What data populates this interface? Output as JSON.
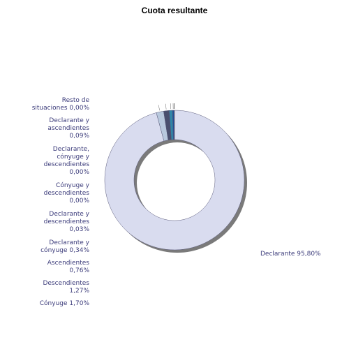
{
  "chart_data": {
    "type": "pie",
    "title": "Cuota resultante",
    "slices": [
      {
        "label": "Declarante 95,80%",
        "lines": [
          "Declarante 95,80%"
        ],
        "value": 95.8,
        "color": "#d9dcef"
      },
      {
        "label": "Cónyuge 1,70%",
        "lines": [
          "Cónyuge 1,70%"
        ],
        "value": 1.7,
        "color": "#b8c8dd"
      },
      {
        "label": "Descendientes 1,27%",
        "lines": [
          "Descendientes",
          "1,27%"
        ],
        "value": 1.27,
        "color": "#4a4f6e"
      },
      {
        "label": "Ascendientes 0,76%",
        "lines": [
          "Ascendientes",
          "0,76%"
        ],
        "value": 0.76,
        "color": "#2f86a8"
      },
      {
        "label": "Declarante y cónyuge 0,34%",
        "lines": [
          "Declarante y",
          "cónyuge 0,34%"
        ],
        "value": 0.34,
        "color": "#1f4e96"
      },
      {
        "label": "Declarante y descendientes 0,03%",
        "lines": [
          "Declarante y",
          "descendientes",
          "0,03%"
        ],
        "value": 0.03,
        "color": "#888888"
      },
      {
        "label": "Cónyuge y descendientes 0,00%",
        "lines": [
          "Cónyuge y",
          "descendientes",
          "0,00%"
        ],
        "value": 0.0,
        "color": "#777777"
      },
      {
        "label": "Declarante, cónyuge y descendientes 0,00%",
        "lines": [
          "Declarante,",
          "cónyuge y",
          "descendientes",
          "0,00%"
        ],
        "value": 0.0,
        "color": "#666666"
      },
      {
        "label": "Declarante y ascendientes 0,09%",
        "lines": [
          "Declarante y",
          "ascendientes",
          "0,09%"
        ],
        "value": 0.09,
        "color": "#999999"
      },
      {
        "label": "Resto de situaciones 0,00%",
        "lines": [
          "Resto de",
          "situaciones 0,00%"
        ],
        "value": 0.0,
        "color": "#555555"
      }
    ]
  }
}
